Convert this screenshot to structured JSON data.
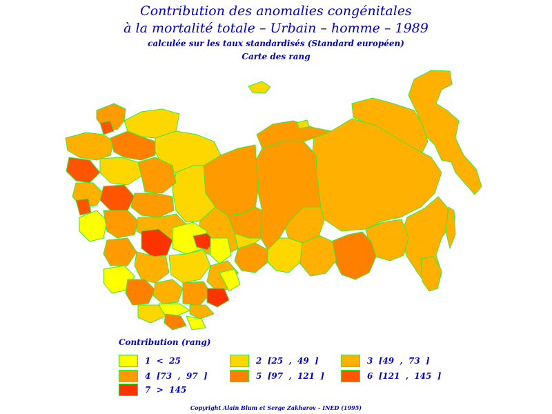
{
  "title": {
    "line1": "Contribution des anomalies congénitales",
    "line2": "à la mortalité totale  –  Urbain  –  homme  –  1989",
    "line3": "calculée sur les taux standardisés (Standard européen)",
    "line4": "Carte des rang"
  },
  "legend": {
    "title": "Contribution  (rang)",
    "items": [
      {
        "label": "1  <  25",
        "color": "#ffff00"
      },
      {
        "label": "2  [25  ,  49  ]",
        "color": "#ffd700"
      },
      {
        "label": "3  [49  ,  73  ]",
        "color": "#ffb000"
      },
      {
        "label": "4  [73  ,  97  ]",
        "color": "#ff9a00"
      },
      {
        "label": "5  [97  ,  121  ]",
        "color": "#ff8000"
      },
      {
        "label": "6  [121  ,  145  ]",
        "color": "#ff5500"
      },
      {
        "label": "7  >  145",
        "color": "#ff3300"
      }
    ]
  },
  "colors": {
    "border": "#33ee33",
    "text": "#0000cc"
  },
  "copyright": "Copyright  Alain  Blum  et  Serge  Zakharov  –  INED  (1995)"
}
